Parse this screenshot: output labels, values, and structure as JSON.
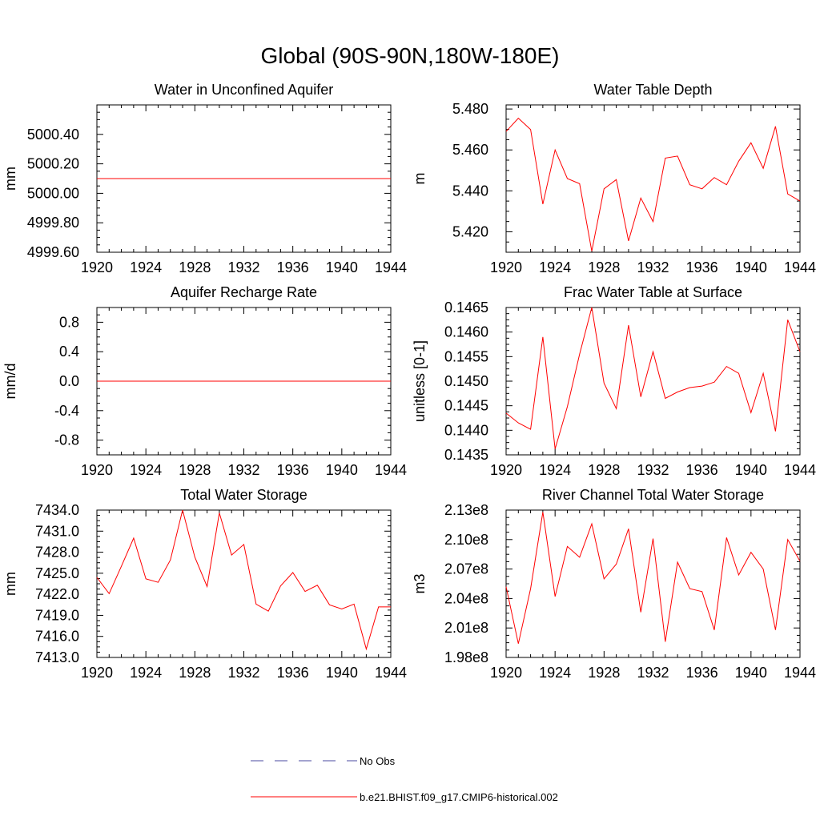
{
  "title": "Global (90S-90N,180W-180E)",
  "colors": {
    "model_line": "#ff0000",
    "obs_line": "#4a4aa0",
    "axis": "#000000"
  },
  "legend": {
    "obs_label": "No Obs",
    "model_label": "b.e21.BHIST.f09_g17.CMIP6-historical.002"
  },
  "chart_data": [
    {
      "type": "line",
      "title": "Water in Unconfined Aquifer",
      "xlabel": "",
      "ylabel": "mm",
      "xlim": [
        1920,
        1944
      ],
      "ylim": [
        4999.6,
        5000.6
      ],
      "x_ticks": [
        1920,
        1924,
        1928,
        1932,
        1936,
        1940,
        1944
      ],
      "x_tick_labels": [
        "1920",
        "1924",
        "1928",
        "1932",
        "1936",
        "1940",
        "1944"
      ],
      "y_ticks": [
        4999.6,
        4999.8,
        5000.0,
        5000.2,
        5000.4
      ],
      "y_tick_labels": [
        "4999.60",
        "4999.80",
        "5000.00",
        "5000.20",
        "5000.40"
      ],
      "series": [
        {
          "x": [
            1920,
            1921,
            1922,
            1923,
            1924,
            1925,
            1926,
            1927,
            1928,
            1929,
            1930,
            1931,
            1932,
            1933,
            1934,
            1935,
            1936,
            1937,
            1938,
            1939,
            1940,
            1941,
            1942,
            1943,
            1944
          ],
          "y": [
            5000.1,
            5000.1,
            5000.1,
            5000.1,
            5000.1,
            5000.1,
            5000.1,
            5000.1,
            5000.1,
            5000.1,
            5000.1,
            5000.1,
            5000.1,
            5000.1,
            5000.1,
            5000.1,
            5000.1,
            5000.1,
            5000.1,
            5000.1,
            5000.1,
            5000.1,
            5000.1,
            5000.1,
            5000.1
          ]
        }
      ]
    },
    {
      "type": "line",
      "title": "Water Table Depth",
      "xlabel": "",
      "ylabel": "m",
      "xlim": [
        1920,
        1944
      ],
      "ylim": [
        5.41,
        5.482
      ],
      "x_ticks": [
        1920,
        1924,
        1928,
        1932,
        1936,
        1940,
        1944
      ],
      "x_tick_labels": [
        "1920",
        "1924",
        "1928",
        "1932",
        "1936",
        "1940",
        "1944"
      ],
      "y_ticks": [
        5.42,
        5.44,
        5.46,
        5.48
      ],
      "y_tick_labels": [
        "5.420",
        "5.440",
        "5.460",
        "5.480"
      ],
      "series": [
        {
          "x": [
            1920,
            1921,
            1922,
            1923,
            1924,
            1925,
            1926,
            1927,
            1928,
            1929,
            1930,
            1931,
            1932,
            1933,
            1934,
            1935,
            1936,
            1937,
            1938,
            1939,
            1940,
            1941,
            1942,
            1943,
            1944
          ],
          "y": [
            5.469,
            5.4755,
            5.47,
            5.4335,
            5.46,
            5.446,
            5.4435,
            5.4105,
            5.441,
            5.4455,
            5.4155,
            5.4365,
            5.425,
            5.456,
            5.457,
            5.443,
            5.441,
            5.4465,
            5.443,
            5.4545,
            5.4635,
            5.451,
            5.4715,
            5.4385,
            5.435
          ]
        }
      ]
    },
    {
      "type": "line",
      "title": "Aquifer Recharge Rate",
      "xlabel": "",
      "ylabel": "mm/d",
      "xlim": [
        1920,
        1944
      ],
      "ylim": [
        -1.0,
        1.0
      ],
      "x_ticks": [
        1920,
        1924,
        1928,
        1932,
        1936,
        1940,
        1944
      ],
      "x_tick_labels": [
        "1920",
        "1924",
        "1928",
        "1932",
        "1936",
        "1940",
        "1944"
      ],
      "y_ticks": [
        -0.8,
        -0.4,
        0.0,
        0.4,
        0.8
      ],
      "y_tick_labels": [
        "-0.8",
        "-0.4",
        "0.0",
        "0.4",
        "0.8"
      ],
      "series": [
        {
          "x": [
            1920,
            1921,
            1922,
            1923,
            1924,
            1925,
            1926,
            1927,
            1928,
            1929,
            1930,
            1931,
            1932,
            1933,
            1934,
            1935,
            1936,
            1937,
            1938,
            1939,
            1940,
            1941,
            1942,
            1943,
            1944
          ],
          "y": [
            0,
            0,
            0,
            0,
            0,
            0,
            0,
            0,
            0,
            0,
            0,
            0,
            0,
            0,
            0,
            0,
            0,
            0,
            0,
            0,
            0,
            0,
            0,
            0,
            0
          ]
        }
      ]
    },
    {
      "type": "line",
      "title": "Frac Water Table at Surface",
      "xlabel": "",
      "ylabel": "unitless [0-1]",
      "xlim": [
        1920,
        1944
      ],
      "ylim": [
        0.1435,
        0.1465
      ],
      "x_ticks": [
        1920,
        1924,
        1928,
        1932,
        1936,
        1940,
        1944
      ],
      "x_tick_labels": [
        "1920",
        "1924",
        "1928",
        "1932",
        "1936",
        "1940",
        "1944"
      ],
      "y_ticks": [
        0.1435,
        0.144,
        0.1445,
        0.145,
        0.1455,
        0.146,
        0.1465
      ],
      "y_tick_labels": [
        "0.1435",
        "0.1440",
        "0.1445",
        "0.1450",
        "0.1455",
        "0.1460",
        "0.1465"
      ],
      "series": [
        {
          "x": [
            1920,
            1921,
            1922,
            1923,
            1924,
            1925,
            1926,
            1927,
            1928,
            1929,
            1930,
            1931,
            1932,
            1933,
            1934,
            1935,
            1936,
            1937,
            1938,
            1939,
            1940,
            1941,
            1942,
            1943,
            1944
          ],
          "y": [
            0.14435,
            0.14415,
            0.14402,
            0.1459,
            0.14362,
            0.14448,
            0.14555,
            0.1465,
            0.14496,
            0.14444,
            0.14614,
            0.14468,
            0.1456,
            0.14465,
            0.14478,
            0.14487,
            0.1449,
            0.14498,
            0.1453,
            0.14516,
            0.14436,
            0.14516,
            0.14398,
            0.14625,
            0.1456
          ]
        }
      ]
    },
    {
      "type": "line",
      "title": "Total Water Storage",
      "xlabel": "",
      "ylabel": "mm",
      "xlim": [
        1920,
        1944
      ],
      "ylim": [
        7413.0,
        7434.0
      ],
      "x_ticks": [
        1920,
        1924,
        1928,
        1932,
        1936,
        1940,
        1944
      ],
      "x_tick_labels": [
        "1920",
        "1924",
        "1928",
        "1932",
        "1936",
        "1940",
        "1944"
      ],
      "y_ticks": [
        7413.0,
        7416.0,
        7419.0,
        7422.0,
        7425.0,
        7428.0,
        7431.0,
        7434.0
      ],
      "y_tick_labels": [
        "7413.0",
        "7416.0",
        "7419.0",
        "7422.0",
        "7425.0",
        "7428.0",
        "7431.0",
        "7434.0"
      ],
      "series": [
        {
          "x": [
            1920,
            1921,
            1922,
            1923,
            1924,
            1925,
            1926,
            1927,
            1928,
            1929,
            1930,
            1931,
            1932,
            1933,
            1934,
            1935,
            1936,
            1937,
            1938,
            1939,
            1940,
            1941,
            1942,
            1943,
            1944
          ],
          "y": [
            7424.4,
            7422.1,
            7426.0,
            7430.0,
            7424.2,
            7423.7,
            7426.9,
            7434.0,
            7427.3,
            7423.1,
            7433.6,
            7427.6,
            7429.1,
            7420.6,
            7419.6,
            7423.2,
            7425.1,
            7422.4,
            7423.3,
            7420.5,
            7419.9,
            7420.6,
            7414.2,
            7420.2,
            7420.2
          ]
        }
      ]
    },
    {
      "type": "line",
      "title": "River Channel Total Water Storage",
      "xlabel": "",
      "ylabel": "m3",
      "xlim": [
        1920,
        1944
      ],
      "ylim": [
        198000000.0,
        213000000.0
      ],
      "x_ticks": [
        1920,
        1924,
        1928,
        1932,
        1936,
        1940,
        1944
      ],
      "x_tick_labels": [
        "1920",
        "1924",
        "1928",
        "1932",
        "1936",
        "1940",
        "1944"
      ],
      "y_ticks": [
        198000000.0,
        201000000.0,
        204000000.0,
        207000000.0,
        210000000.0,
        213000000.0
      ],
      "y_tick_labels": [
        "1.98e8",
        "2.01e8",
        "2.04e8",
        "2.07e8",
        "2.10e8",
        "2.13e8"
      ],
      "series": [
        {
          "x": [
            1920,
            1921,
            1922,
            1923,
            1924,
            1925,
            1926,
            1927,
            1928,
            1929,
            1930,
            1931,
            1932,
            1933,
            1934,
            1935,
            1936,
            1937,
            1938,
            1939,
            1940,
            1941,
            1942,
            1943,
            1944
          ],
          "y": [
            205200000.0,
            199400000.0,
            205000000.0,
            212800000.0,
            204200000.0,
            209300000.0,
            208200000.0,
            211600000.0,
            206000000.0,
            207500000.0,
            211100000.0,
            202600000.0,
            210100000.0,
            199600000.0,
            207700000.0,
            205000000.0,
            204700000.0,
            200800000.0,
            210200000.0,
            206400000.0,
            208700000.0,
            207000000.0,
            200800000.0,
            210000000.0,
            207800000.0
          ]
        }
      ]
    }
  ]
}
